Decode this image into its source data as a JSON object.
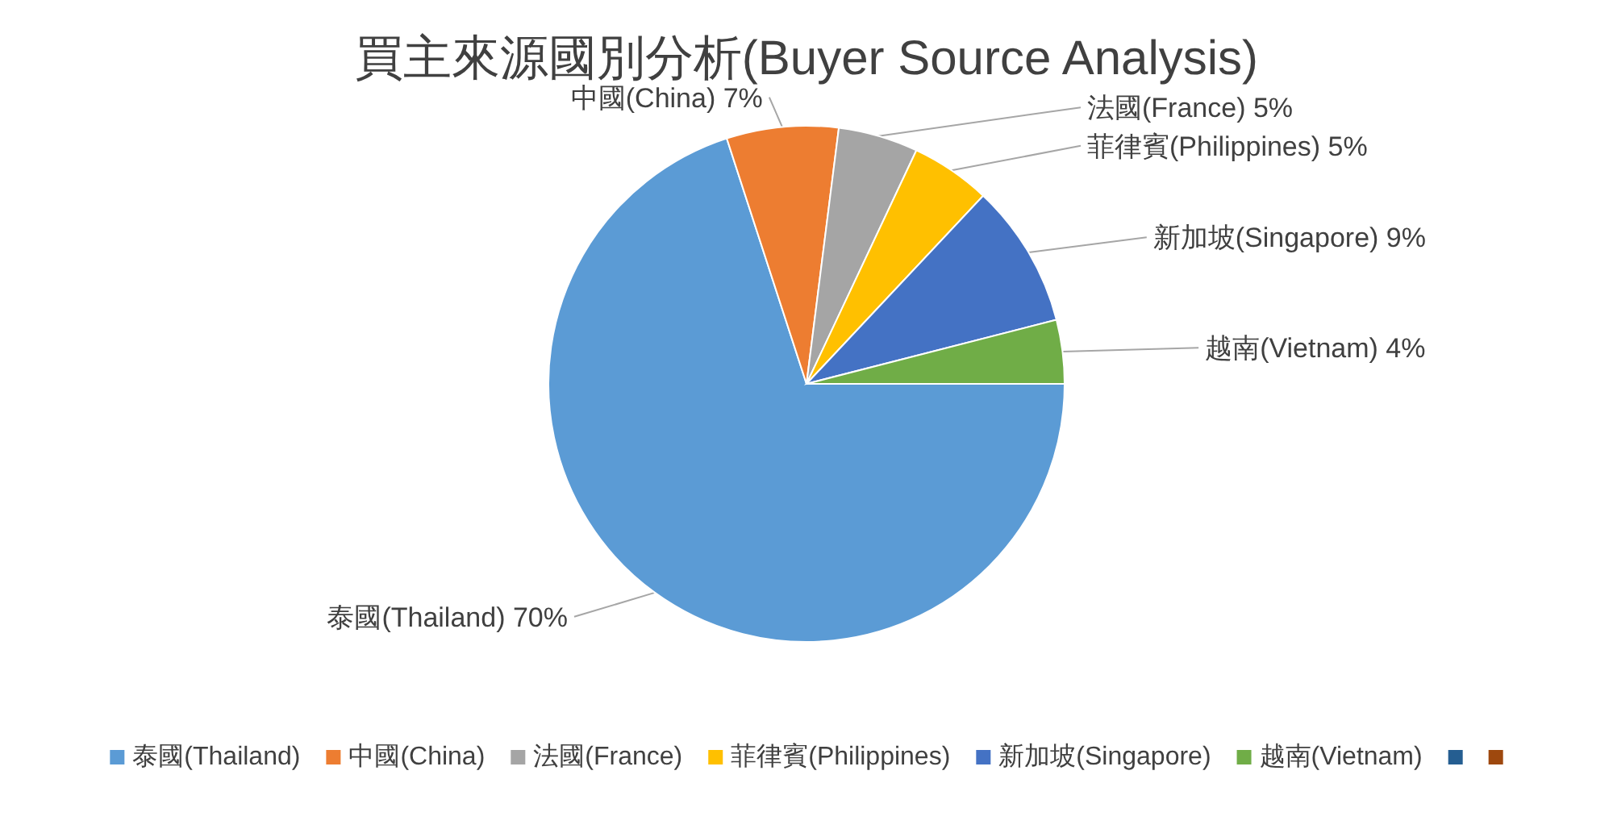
{
  "chart_data": {
    "type": "pie",
    "title": "買主來源國別分析(Buyer Source Analysis)",
    "categories": [
      "泰國(Thailand)",
      "中國(China)",
      "法國(France)",
      "菲律賓(Philippines)",
      "新加坡(Singapore)",
      "越南(Vietnam)",
      null,
      null
    ],
    "values": [
      70,
      7,
      5,
      5,
      9,
      4,
      0,
      0
    ],
    "value_labels": [
      "70%",
      "7%",
      "5%",
      "5%",
      "9%",
      "4%",
      null,
      null
    ],
    "colors": [
      "#5b9bd5",
      "#ed7d31",
      "#a5a5a5",
      "#ffc000",
      "#4472c4",
      "#70ad47",
      "#255e91",
      "#9e480e"
    ],
    "legend": "bottom"
  }
}
